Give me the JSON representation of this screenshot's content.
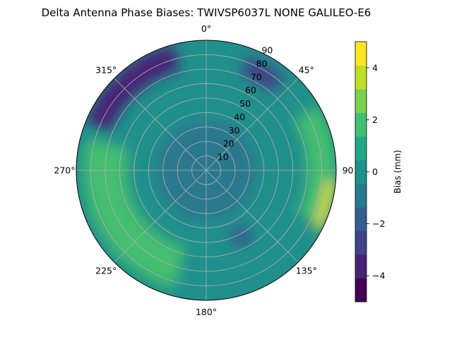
{
  "chart_data": {
    "type": "polar_contour",
    "title": "Delta Antenna Phase Biases: TWIVSP6037L     NONE GALILEO-E6",
    "angular_ticks": [
      {
        "deg": 0,
        "label": "0°"
      },
      {
        "deg": 45,
        "label": "45°"
      },
      {
        "deg": 90,
        "label": "90"
      },
      {
        "deg": 135,
        "label": "135°"
      },
      {
        "deg": 180,
        "label": "180°"
      },
      {
        "deg": 225,
        "label": "225°"
      },
      {
        "deg": 270,
        "label": "270°"
      },
      {
        "deg": 315,
        "label": "315°"
      }
    ],
    "radial_ticks": [
      10,
      20,
      30,
      40,
      50,
      60,
      70,
      80,
      90
    ],
    "radial_range": [
      0,
      90
    ],
    "direction": "clockwise",
    "zero_location": "top",
    "grid": true,
    "colorbar": {
      "label": "Bias (mm)",
      "range": [
        -5,
        5
      ],
      "levels": [
        -5,
        -4.5,
        -4,
        -3.5,
        -3,
        -2.5,
        -2,
        -1.5,
        -1,
        -0.5,
        0,
        0.5,
        1,
        1.5,
        2,
        2.5,
        3,
        3.5,
        4,
        4.5,
        5
      ],
      "tick_values": [
        -4,
        -2,
        0,
        2,
        4
      ],
      "tick_labels": [
        "−4",
        "−2",
        "0",
        "2",
        "4"
      ],
      "colors": [
        "#440154",
        "#482374",
        "#404387",
        "#345e8d",
        "#29788e",
        "#20908c",
        "#22a884",
        "#44be70",
        "#7ad151",
        "#bddf26",
        "#fde725"
      ]
    },
    "regions": [
      {
        "name": "center-blue",
        "value": -1.2,
        "az": [
          0,
          360
        ],
        "r": [
          0,
          35
        ]
      },
      {
        "name": "nw-rim-dark",
        "value": -3.2,
        "az": [
          292,
          345
        ],
        "r": [
          72,
          90
        ]
      },
      {
        "name": "ne-rim-blue",
        "value": -2.5,
        "az": [
          20,
          40
        ],
        "r": [
          70,
          84
        ]
      },
      {
        "name": "east-green-band",
        "value": 2.2,
        "az": [
          60,
          115
        ],
        "r": [
          70,
          90
        ]
      },
      {
        "name": "east-rim-yellow",
        "value": 4.6,
        "az": [
          95,
          118
        ],
        "r": [
          84,
          90
        ]
      },
      {
        "name": "west-green-band",
        "value": 1.8,
        "az": [
          195,
          285
        ],
        "r": [
          55,
          85
        ]
      },
      {
        "name": "southeast-blue",
        "value": -1.7,
        "az": [
          145,
          160
        ],
        "r": [
          45,
          58
        ]
      }
    ]
  }
}
